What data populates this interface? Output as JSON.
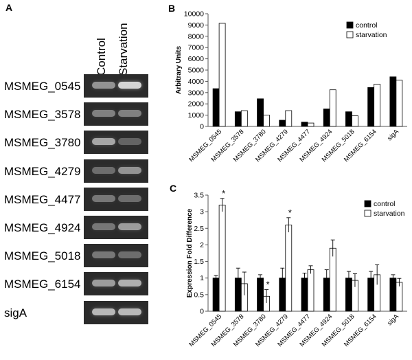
{
  "panelA": {
    "label": "A",
    "columns": [
      "Control",
      "Starvation"
    ],
    "rows": [
      {
        "gene": "MSMEG_0545",
        "control": 0.55,
        "starvation": 0.9
      },
      {
        "gene": "MSMEG_3578",
        "control": 0.45,
        "starvation": 0.45
      },
      {
        "gene": "MSMEG_3780",
        "control": 0.65,
        "starvation": 0.3
      },
      {
        "gene": "MSMEG_4279",
        "control": 0.35,
        "starvation": 0.55
      },
      {
        "gene": "MSMEG_4477",
        "control": 0.4,
        "starvation": 0.35
      },
      {
        "gene": "MSMEG_4924",
        "control": 0.4,
        "starvation": 0.6
      },
      {
        "gene": "MSMEG_5018",
        "control": 0.4,
        "starvation": 0.35
      },
      {
        "gene": "MSMEG_6154",
        "control": 0.6,
        "starvation": 0.7
      },
      {
        "gene": "sigA",
        "control": 0.75,
        "starvation": 0.75
      }
    ],
    "colors": {
      "gel": "#2b2b2b",
      "band": "#e8e8e8"
    }
  },
  "chart_data": [
    {
      "panel": "B",
      "type": "bar",
      "ylabel": "Arbitrary Units",
      "ylim": [
        0,
        10000
      ],
      "yticks": [
        0,
        1000,
        2000,
        3000,
        4000,
        5000,
        6000,
        7000,
        8000,
        9000,
        10000
      ],
      "categories": [
        "MSMEG_0545",
        "MSMEG_3578",
        "MSMEG_3780",
        "MSMEG_4279",
        "MSMEG_4477",
        "MSMEG_4924",
        "MSMEG_5018",
        "MSMEG_6154",
        "sigA"
      ],
      "series": [
        {
          "name": "control",
          "color": "#000000",
          "values": [
            3350,
            1300,
            2450,
            550,
            380,
            1550,
            1300,
            3450,
            4400
          ]
        },
        {
          "name": "starvation",
          "color": "#ffffff",
          "values": [
            9150,
            1400,
            1000,
            1400,
            300,
            3250,
            950,
            3750,
            4100
          ]
        }
      ],
      "legend": "top-right",
      "grid": false
    },
    {
      "panel": "C",
      "type": "bar",
      "ylabel": "Expression Fold Difference",
      "ylim": [
        0,
        3.5
      ],
      "yticks": [
        0,
        0.5,
        1,
        1.5,
        2,
        2.5,
        3,
        3.5
      ],
      "categories": [
        "MSMEG_0545",
        "MSMEG_3578",
        "MSMEG_3780",
        "MSMEG_4279",
        "MSMEG_4477",
        "MSMEG_4924",
        "MSMEG_5018",
        "MSMEG_6154",
        "sigA"
      ],
      "series": [
        {
          "name": "control",
          "color": "#000000",
          "values": [
            1,
            1,
            1,
            1,
            1,
            1,
            1,
            1,
            1
          ],
          "errors": [
            0.08,
            0.3,
            0.1,
            0.3,
            0.15,
            0.25,
            0.2,
            0.2,
            0.1
          ]
        },
        {
          "name": "starvation",
          "color": "#ffffff",
          "values": [
            3.2,
            0.83,
            0.45,
            2.6,
            1.25,
            1.9,
            0.93,
            1.1,
            0.87
          ],
          "errors": [
            0.2,
            0.35,
            0.2,
            0.22,
            0.12,
            0.25,
            0.2,
            0.3,
            0.12
          ]
        }
      ],
      "significant": [
        true,
        false,
        true,
        true,
        false,
        false,
        false,
        false,
        false
      ],
      "significance_mark": "*",
      "legend": "top-right",
      "grid": false
    }
  ]
}
